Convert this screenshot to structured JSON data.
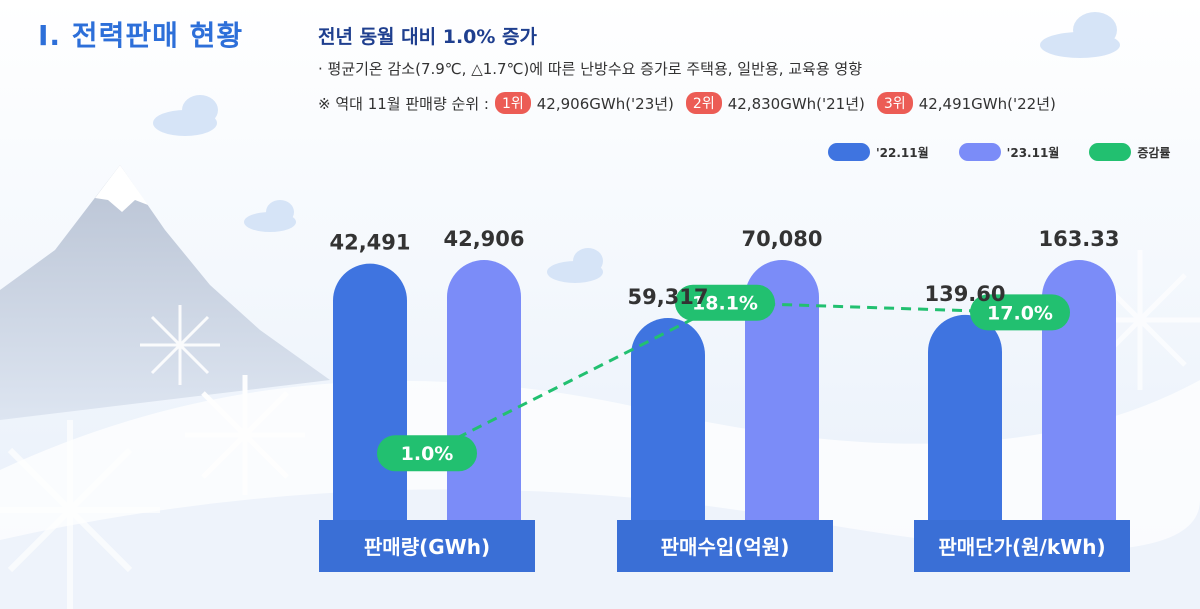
{
  "header": {
    "section_title": "Ⅰ. 전력판매 현황",
    "headline": "전년 동월 대비 1.0% 증가",
    "bullet": "· 평균기온 감소(7.9℃, △1.7℃)에 따른 난방수요 증가로 주택용, 일반용, 교육용 영향",
    "ranking_prefix": "※ 역대 11월 판매량 순위 :",
    "ranking": [
      {
        "rank": "1위",
        "value": "42,906GWh('23년)"
      },
      {
        "rank": "2위",
        "value": "42,830GWh('21년)"
      },
      {
        "rank": "3위",
        "value": "42,491GWh('22년)"
      }
    ]
  },
  "colors": {
    "series_2022": "#3f74e0",
    "series_2023": "#7b8cf8",
    "growth": "#22c070",
    "category_box": "#3a6fd6",
    "rank_badge": "#ec5c55"
  },
  "chart_data": {
    "type": "bar",
    "categories": [
      "판매량(GWh)",
      "판매수입(억원)",
      "판매단가(원/kWh)"
    ],
    "series": [
      {
        "name": "'22.11월",
        "values": [
          42491,
          59317,
          139.6
        ],
        "labels": [
          "42,491",
          "59,317",
          "139.60"
        ]
      },
      {
        "name": "'23.11월",
        "values": [
          42906,
          70080,
          163.33
        ],
        "labels": [
          "42,906",
          "70,080",
          "163.33"
        ]
      }
    ],
    "growth": {
      "name": "증감률",
      "values": [
        1.0,
        18.1,
        17.0
      ],
      "labels": [
        "1.0%",
        "18.1%",
        "17.0%"
      ]
    },
    "legend_position": "top-right",
    "grid": false
  }
}
